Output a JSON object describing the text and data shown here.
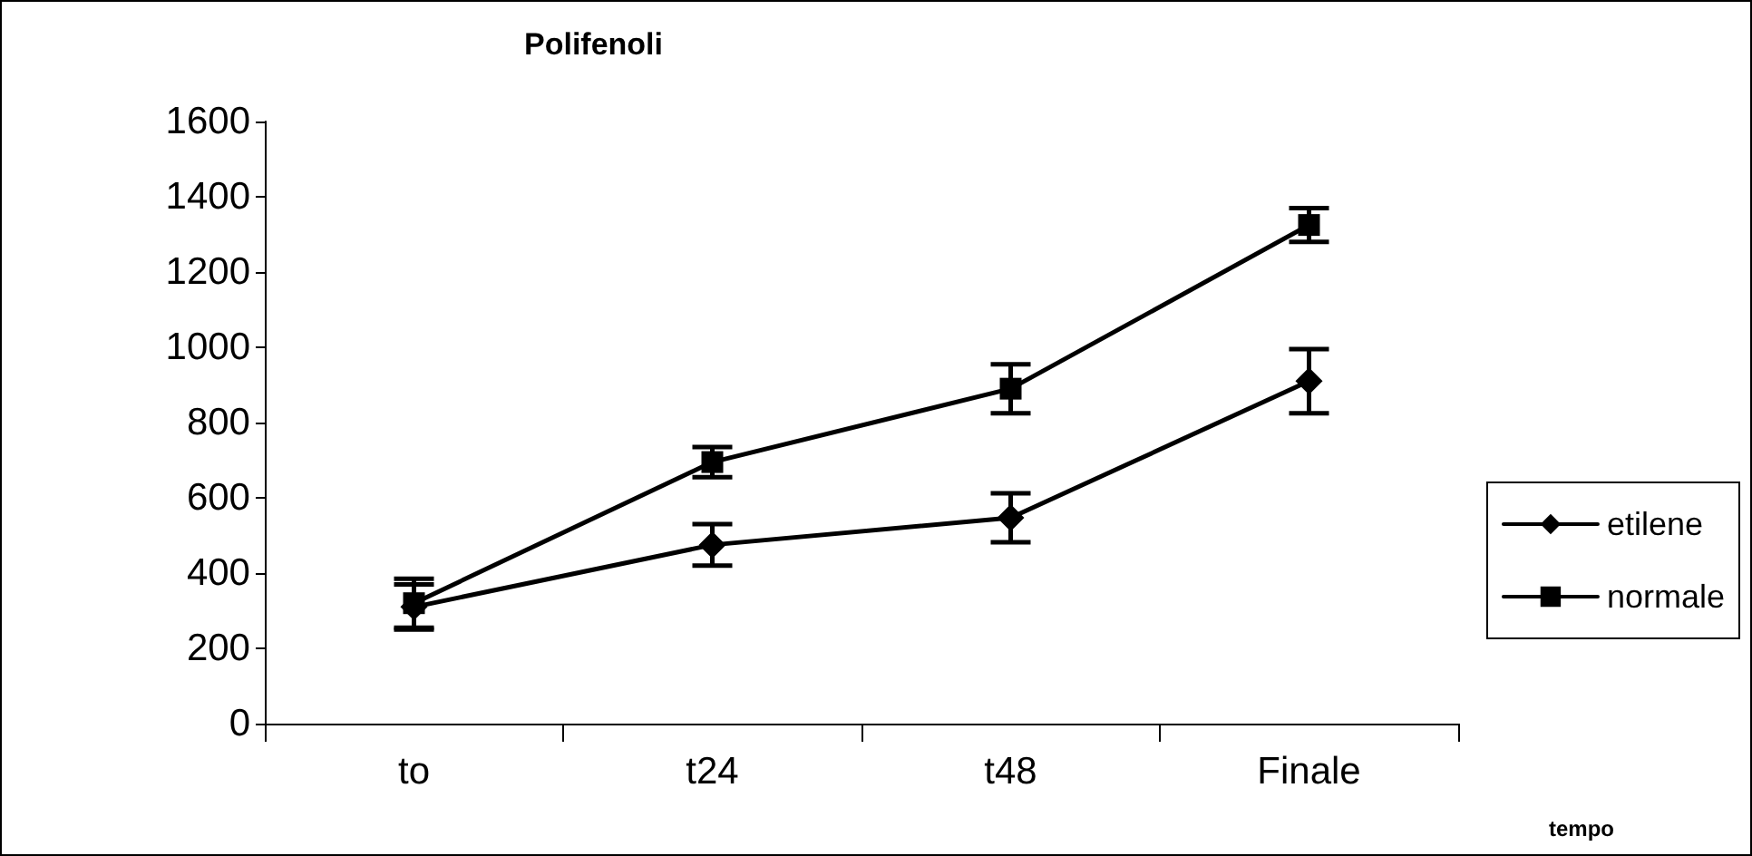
{
  "chart_data": {
    "type": "line",
    "title": "Polifenoli",
    "xlabel": "tempo",
    "categories": [
      "to",
      "t24",
      "t48",
      "Finale"
    ],
    "series": [
      {
        "name": "etilene",
        "color": "#000000",
        "marker": "diamond",
        "values": [
          310,
          475,
          547,
          910
        ],
        "errors": [
          60,
          55,
          65,
          85
        ]
      },
      {
        "name": "normale",
        "color": "#000000",
        "marker": "square",
        "values": [
          320,
          695,
          890,
          1325
        ],
        "errors": [
          65,
          40,
          65,
          45
        ]
      }
    ],
    "ylim": [
      0,
      1600
    ],
    "yticks": [
      0,
      200,
      400,
      600,
      800,
      1000,
      1200,
      1400,
      1600
    ],
    "grid": false,
    "legend": "right",
    "line_style": "solid"
  }
}
